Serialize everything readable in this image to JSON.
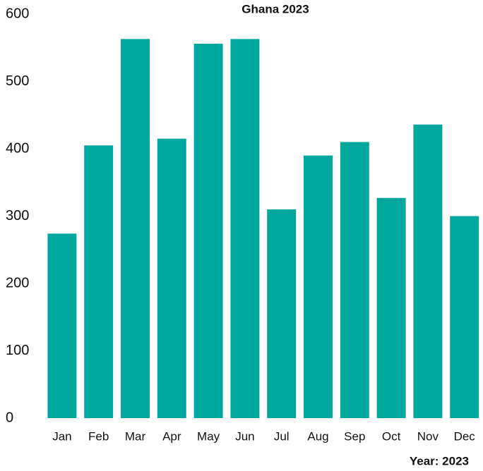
{
  "chart_data": {
    "type": "bar",
    "title": "Ghana 2023",
    "footer": "Year: 2023",
    "categories": [
      "Jan",
      "Feb",
      "Mar",
      "Apr",
      "May",
      "Jun",
      "Jul",
      "Aug",
      "Sep",
      "Oct",
      "Nov",
      "Dec"
    ],
    "values": [
      274,
      405,
      563,
      415,
      556,
      563,
      310,
      390,
      410,
      327,
      436,
      300
    ],
    "color": "#00a79d",
    "ylim": [
      0,
      600
    ],
    "yticks": [
      0,
      100,
      200,
      300,
      400,
      500,
      600
    ],
    "grid": false
  }
}
